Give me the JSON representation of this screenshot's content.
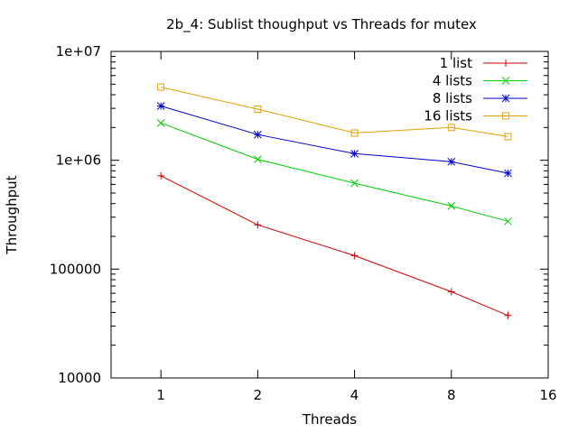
{
  "chart_data": {
    "type": "line",
    "title": "2b_4: Sublist thoughput vs Threads for mutex",
    "xlabel": "Threads",
    "ylabel": "Throughput",
    "x_scale": "log2",
    "y_scale": "log10",
    "xlim": [
      0.7,
      16
    ],
    "ylim": [
      10000,
      10000000
    ],
    "x_ticks": [
      1,
      2,
      4,
      8,
      16
    ],
    "x_tick_labels": [
      "1",
      "2",
      "4",
      "8",
      "16"
    ],
    "y_ticks": [
      10000,
      100000,
      1000000,
      10000000
    ],
    "y_tick_labels": [
      "10000",
      "100000",
      "1e+06",
      "1e+07"
    ],
    "grid": false,
    "legend_position": "top-right",
    "x": [
      1,
      2,
      4,
      8,
      12
    ],
    "series": [
      {
        "name": "1 list",
        "color": "#cc0000",
        "marker": "plus",
        "values": [
          720000,
          255000,
          133000,
          62000,
          37500
        ]
      },
      {
        "name": "4 lists",
        "color": "#00cc00",
        "marker": "cross",
        "values": [
          2200000,
          1020000,
          615000,
          380000,
          275000
        ]
      },
      {
        "name": "8 lists",
        "color": "#0000cc",
        "marker": "asterisk",
        "values": [
          3150000,
          1720000,
          1150000,
          970000,
          760000
        ]
      },
      {
        "name": "16 lists",
        "color": "#e6a000",
        "marker": "square",
        "values": [
          4700000,
          2950000,
          1780000,
          2000000,
          1650000
        ]
      }
    ]
  }
}
